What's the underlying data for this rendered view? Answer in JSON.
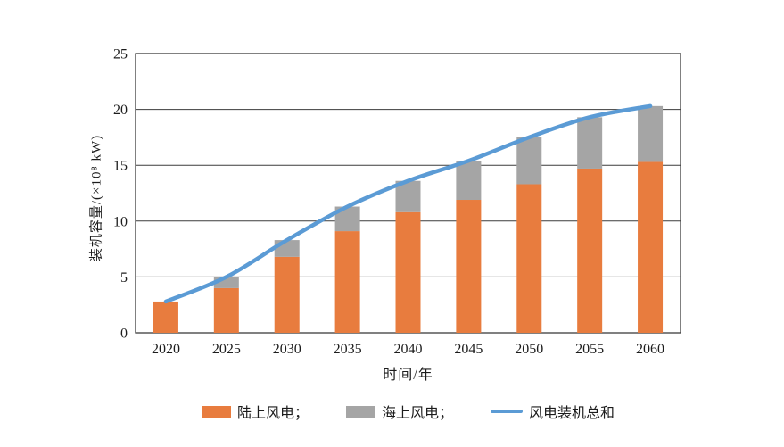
{
  "chart_data": {
    "type": "bar",
    "subtype": "stacked_bar_with_total_line",
    "title": "",
    "xlabel": "时间/年",
    "ylabel": "装机容量/(×10⁸ kW)",
    "categories": [
      "2020",
      "2025",
      "2030",
      "2035",
      "2040",
      "2045",
      "2050",
      "2055",
      "2060"
    ],
    "series": [
      {
        "name": "陆上风电",
        "type": "bar",
        "color": "#E87C3E",
        "values": [
          2.8,
          4.0,
          6.8,
          9.1,
          10.8,
          11.9,
          13.3,
          14.7,
          15.3
        ]
      },
      {
        "name": "海上风电",
        "type": "bar",
        "color": "#A5A5A5",
        "values": [
          0,
          1.0,
          1.5,
          2.2,
          2.8,
          3.5,
          4.2,
          4.6,
          5.0
        ]
      },
      {
        "name": "风电装机总和",
        "type": "line",
        "color": "#5B9BD5",
        "values": [
          2.8,
          5.0,
          8.3,
          11.3,
          13.6,
          15.4,
          17.5,
          19.3,
          20.3
        ]
      }
    ],
    "ylim": [
      0,
      25
    ],
    "yticks": [
      "0",
      "5",
      "10",
      "15",
      "20",
      "25"
    ],
    "grid": true,
    "axis_color": "#3c3c3c",
    "background": "#ffffff",
    "legend_position": "bottom",
    "legend": [
      {
        "label": "陆上风电；",
        "swatch": "bar",
        "color": "#E87C3E"
      },
      {
        "label": "海上风电；",
        "swatch": "bar",
        "color": "#A5A5A5"
      },
      {
        "label": "风电装机总和",
        "swatch": "line",
        "color": "#5B9BD5"
      }
    ]
  }
}
